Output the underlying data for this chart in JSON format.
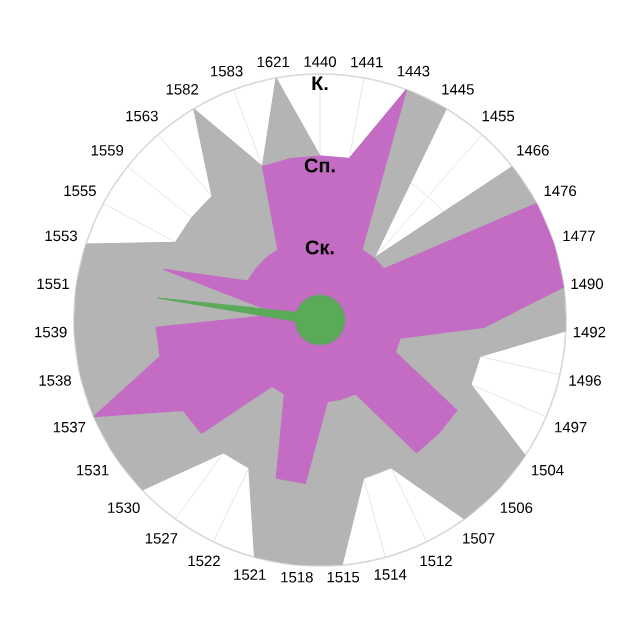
{
  "chart_data": {
    "type": "radar",
    "categories": [
      "1440",
      "1441",
      "1443",
      "1445",
      "1455",
      "1466",
      "1476",
      "1477",
      "1490",
      "1492",
      "1496",
      "1497",
      "1504",
      "1506",
      "1507",
      "1512",
      "1514",
      "1515",
      "1518",
      "1521",
      "1522",
      "1527",
      "1530",
      "1531",
      "1537",
      "1538",
      "1539",
      "1551",
      "1553",
      "1555",
      "1559",
      "1563",
      "1582",
      "1583",
      "1621"
    ],
    "ylim": [
      0,
      3
    ],
    "yticks": [
      {
        "value": 1,
        "label": "Ск."
      },
      {
        "value": 2,
        "label": "Сп."
      },
      {
        "value": 3,
        "label": "К."
      }
    ],
    "grid": true,
    "series": [
      {
        "color": "#b4b4b4",
        "values": [
          2,
          2,
          3,
          3,
          1,
          3,
          3,
          3,
          3,
          3,
          2,
          2,
          3,
          3,
          3,
          2,
          2,
          3,
          3,
          3,
          2,
          2,
          3,
          3,
          3,
          3,
          3,
          3,
          3,
          2,
          2,
          2,
          3,
          2,
          3
        ]
      },
      {
        "color": "#c46cc4",
        "values": [
          2,
          2,
          3,
          1,
          1,
          1,
          3,
          3,
          3,
          2,
          1,
          1,
          2,
          2,
          2,
          1,
          1,
          1,
          2,
          2,
          1,
          1,
          2,
          2,
          3,
          2,
          2,
          0.5,
          2,
          1,
          1,
          1,
          1,
          2,
          2
        ]
      },
      {
        "color": "#5aaa5a",
        "values": [
          0.3,
          0.3,
          0.3,
          0.3,
          0.3,
          0.3,
          0.3,
          0.3,
          0.3,
          0.3,
          0.3,
          0.3,
          0.3,
          0.3,
          0.3,
          0.3,
          0.3,
          0.3,
          0.3,
          0.3,
          0.3,
          0.3,
          0.3,
          0.3,
          0.3,
          0.3,
          0.3,
          2,
          0.3,
          0.3,
          0.3,
          0.3,
          0.3,
          0.3,
          0.3
        ]
      }
    ]
  }
}
